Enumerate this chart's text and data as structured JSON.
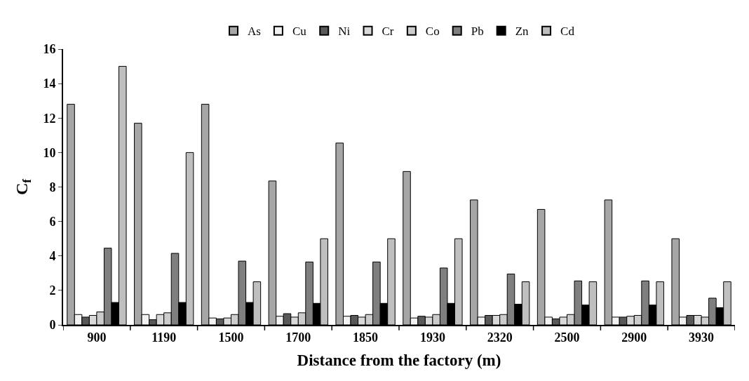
{
  "chart_data": {
    "type": "bar",
    "xlabel": "Distance from the factory (m)",
    "ylabel": "C$_{f}$",
    "categories": [
      "900",
      "1190",
      "1500",
      "1700",
      "1850",
      "1930",
      "2320",
      "2500",
      "2900",
      "3930"
    ],
    "series": [
      {
        "name": "As",
        "color": "#a6a6a6",
        "values": [
          12.8,
          11.7,
          12.8,
          8.35,
          10.55,
          8.9,
          7.25,
          6.7,
          7.25,
          5.0
        ]
      },
      {
        "name": "Cu",
        "color": "#f2f2f2",
        "values": [
          0.6,
          0.6,
          0.4,
          0.5,
          0.5,
          0.4,
          0.45,
          0.45,
          0.45,
          0.45
        ]
      },
      {
        "name": "Ni",
        "color": "#595959",
        "values": [
          0.45,
          0.3,
          0.35,
          0.65,
          0.55,
          0.5,
          0.55,
          0.35,
          0.45,
          0.55
        ]
      },
      {
        "name": "Cr",
        "color": "#d9d9d9",
        "values": [
          0.55,
          0.6,
          0.4,
          0.45,
          0.45,
          0.45,
          0.55,
          0.45,
          0.5,
          0.55
        ]
      },
      {
        "name": "Co",
        "color": "#cccccc",
        "values": [
          0.75,
          0.7,
          0.6,
          0.7,
          0.6,
          0.6,
          0.6,
          0.6,
          0.55,
          0.45
        ]
      },
      {
        "name": "Pb",
        "color": "#7f7f7f",
        "values": [
          4.45,
          4.15,
          3.7,
          3.65,
          3.65,
          3.3,
          2.95,
          2.55,
          2.55,
          1.55
        ]
      },
      {
        "name": "Zn",
        "color": "#000000",
        "values": [
          1.3,
          1.3,
          1.3,
          1.25,
          1.25,
          1.25,
          1.2,
          1.15,
          1.15,
          1.0
        ]
      },
      {
        "name": "Cd",
        "color": "#bfbfbf",
        "values": [
          15,
          10,
          2.5,
          5,
          5,
          5,
          2.5,
          2.5,
          2.5,
          2.5
        ]
      }
    ],
    "ylim": [
      0,
      16
    ],
    "yticks": [
      0,
      2,
      4,
      6,
      8,
      10,
      12,
      14,
      16
    ],
    "legend": "top"
  }
}
